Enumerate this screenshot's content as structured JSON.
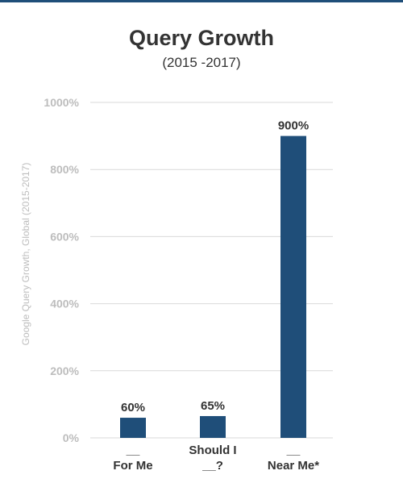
{
  "colors": {
    "bar": "#1f4e79",
    "top_rule": "#1f4e79",
    "grid": "#d9d9d9",
    "tick_label": "#bdbdbd",
    "axis_label": "#bdbdbd",
    "text": "#333333"
  },
  "chart_data": {
    "type": "bar",
    "title": "Query Growth",
    "subtitle": "(2015 -2017)",
    "ylabel": "Google Query Growth, Global (2015-2017)",
    "xlabel": "",
    "categories": [
      [
        "__",
        "For Me"
      ],
      [
        "Should I",
        "__?"
      ],
      [
        "__",
        "Near Me*"
      ]
    ],
    "values": [
      60,
      65,
      900
    ],
    "data_labels": [
      "60%",
      "65%",
      "900%"
    ],
    "ylim": [
      0,
      1000
    ],
    "yticks": [
      0,
      200,
      400,
      600,
      800,
      1000
    ],
    "ytick_labels": [
      "0%",
      "200%",
      "400%",
      "600%",
      "800%",
      "1000%"
    ],
    "grid": true,
    "legend": "none"
  }
}
